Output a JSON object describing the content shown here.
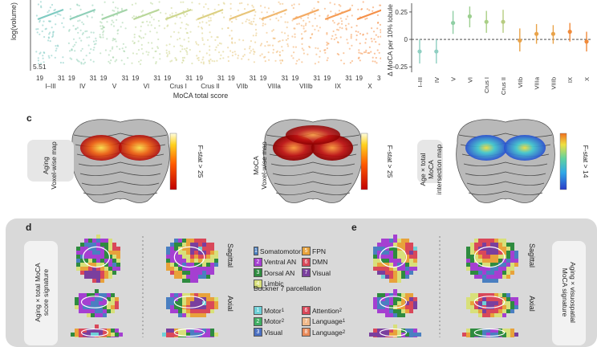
{
  "panel_top": {
    "y_axis_label": "log(volume) (mm",
    "y_min_label": "5.51",
    "x_tick_min": "19",
    "x_tick_max": "31",
    "lobules": [
      "I–III",
      "IV",
      "V",
      "VI",
      "Crus I",
      "Crus II",
      "VIIb",
      "VIIIa",
      "VIIIb",
      "IX",
      "X"
    ],
    "x_axis_title": "MoCA total score",
    "colors": [
      "#7fcbc2",
      "#8fcfb8",
      "#a3d4a8",
      "#b9d79a",
      "#cdd68d",
      "#dcd083",
      "#e8c57a",
      "#f0b870",
      "#f4aa63",
      "#f59c55",
      "#f58f47"
    ]
  },
  "chart_data": {
    "type": "scatter",
    "title": "",
    "xlabel": "",
    "ylabel": "Δ MoCA per 10% lobule",
    "categories": [
      "I–III",
      "IV",
      "V",
      "VI",
      "Crus I",
      "Crus II",
      "VIIb",
      "VIIIa",
      "VIIIb",
      "IX",
      "X"
    ],
    "values": [
      -0.11,
      -0.11,
      0.15,
      0.21,
      0.16,
      0.16,
      -0.01,
      0.05,
      0.05,
      0.07,
      -0.02
    ],
    "lower": [
      -0.22,
      -0.22,
      0.05,
      0.11,
      0.06,
      0.06,
      -0.11,
      -0.04,
      -0.04,
      -0.02,
      -0.11
    ],
    "upper": [
      0.0,
      0.0,
      0.26,
      0.3,
      0.26,
      0.27,
      0.1,
      0.14,
      0.13,
      0.15,
      0.07
    ],
    "yticks": [
      -0.25,
      0,
      0.25
    ],
    "ytick_labels": [
      "–0.25",
      "0",
      "0.25"
    ],
    "ylim": [
      -0.3,
      0.33
    ],
    "reference_line": 0,
    "grid": false,
    "colors": [
      "#8fcfc2",
      "#8fcfc2",
      "#8fcfa4",
      "#9ccf8f",
      "#a9cf86",
      "#b7cc80",
      "#e9a34a",
      "#e9a34a",
      "#e9a34a",
      "#f08a3a",
      "#f08a3a"
    ]
  },
  "panel_c": {
    "label": "c",
    "maps": [
      {
        "row_label": "Aging",
        "row_label2": "Voxel-wise map",
        "colorbar_label": "F-stat > 25"
      },
      {
        "row_label": "MoCA",
        "row_label2": "Voxel-wise map",
        "colorbar_label": "F-stat > 25"
      },
      {
        "row_label": "Age × total MoCA",
        "row_label2": "intersection map",
        "colorbar_label": "F-stat > 14"
      }
    ]
  },
  "panel_d": {
    "label": "d",
    "side_label": "Aging × total MoCA",
    "side_label2": "score signature",
    "view_labels": [
      "Sagittal",
      "Axial"
    ],
    "legend_buckner": [
      {
        "num": "1",
        "name": "Somatomotor",
        "color": "#4a7fc1"
      },
      {
        "num": "2",
        "name": "Ventral AN",
        "color": "#a53fd1"
      },
      {
        "num": "3",
        "name": "Dorsal AN",
        "color": "#2e8b3f"
      },
      {
        "num": "4",
        "name": "Limbic",
        "color": "#d8e07a"
      },
      {
        "num": "5",
        "name": "FPN",
        "color": "#e8a23b"
      },
      {
        "num": "6",
        "name": "DMN",
        "color": "#d9485a"
      },
      {
        "num": "7",
        "name": "Visual",
        "color": "#7a3f9e"
      }
    ],
    "buckner_title": "Buckner 7 parcellation",
    "legend_task": [
      {
        "num": "1",
        "name": "Motor",
        "sub": "1",
        "color": "#6fd0d8"
      },
      {
        "num": "2",
        "name": "Motor",
        "sub": "2",
        "color": "#3fae63"
      },
      {
        "num": "3",
        "name": "Visual",
        "sub": "",
        "color": "#4a6fc1"
      },
      {
        "num": "6",
        "name": "Attention",
        "sub": "2",
        "color": "#d9485a"
      },
      {
        "num": "7",
        "name": "Language",
        "sub": "1",
        "color": "#f0b98a"
      },
      {
        "num": "8",
        "name": "Language",
        "sub": "2",
        "color": "#e88a5a"
      }
    ]
  },
  "panel_e": {
    "label": "e",
    "side_label": "Aging × visuospatial",
    "side_label2": "MoCA signature",
    "view_labels": [
      "Sagittal",
      "Axial"
    ]
  }
}
